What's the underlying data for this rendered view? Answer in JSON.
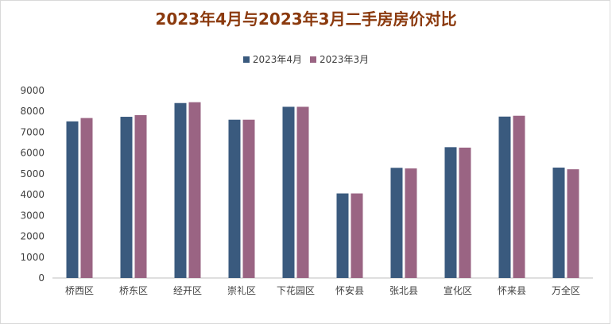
{
  "chart_data": {
    "type": "bar",
    "title": "2023年4月与2023年3月二手房房价对比",
    "categories": [
      "桥西区",
      "桥东区",
      "经开区",
      "崇礼区",
      "下花园区",
      "怀安县",
      "张北县",
      "宣化区",
      "怀来县",
      "万全区"
    ],
    "series": [
      {
        "name": "2023年4月",
        "color": "#3a5a7e",
        "values": [
          7520,
          7740,
          8400,
          7600,
          8220,
          4060,
          5290,
          6280,
          7750,
          5300
        ]
      },
      {
        "name": "2023年3月",
        "color": "#9a6483",
        "values": [
          7680,
          7820,
          8440,
          7600,
          8220,
          4060,
          5260,
          6260,
          7790,
          5220
        ]
      }
    ],
    "ylim": [
      0,
      9000
    ],
    "yticks": [
      "0",
      "1000",
      "2000",
      "3000",
      "4000",
      "5000",
      "6000",
      "7000",
      "8000",
      "9000"
    ],
    "legend_position": "top",
    "grid": false
  }
}
